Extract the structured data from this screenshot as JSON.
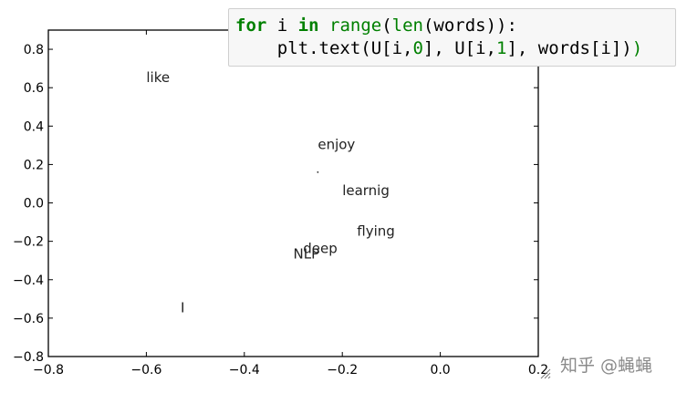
{
  "chart_data": {
    "type": "scatter",
    "xlim": [
      -0.8,
      0.2
    ],
    "ylim": [
      -0.8,
      0.9
    ],
    "x_ticks": [
      "−0.8",
      "−0.6",
      "−0.4",
      "−0.2",
      "0.0",
      "0.2"
    ],
    "y_ticks": [
      "−0.8",
      "−0.6",
      "−0.4",
      "−0.2",
      "0.0",
      "0.2",
      "0.4",
      "0.6",
      "0.8"
    ],
    "x_tick_values": [
      -0.8,
      -0.6,
      -0.4,
      -0.2,
      0.0,
      0.2
    ],
    "y_tick_values": [
      -0.8,
      -0.6,
      -0.4,
      -0.2,
      0.0,
      0.2,
      0.4,
      0.6,
      0.8
    ],
    "points": [
      {
        "label": "like",
        "x": -0.6,
        "y": 0.63
      },
      {
        "label": "enjoy",
        "x": -0.25,
        "y": 0.28
      },
      {
        "label": "learnig",
        "x": -0.2,
        "y": 0.04
      },
      {
        "label": "flying",
        "x": -0.17,
        "y": -0.17
      },
      {
        "label": "deep",
        "x": -0.28,
        "y": -0.26
      },
      {
        "label": "NLP",
        "x": -0.3,
        "y": -0.29
      },
      {
        "label": "I",
        "x": -0.53,
        "y": -0.57
      }
    ],
    "marker_point": {
      "x": -0.25,
      "y": 0.16
    },
    "grid": false,
    "title": "",
    "xlabel": "",
    "ylabel": ""
  },
  "code": {
    "line1": {
      "kw_for": "for",
      "var_i": " i ",
      "kw_in": "in",
      "sp": " ",
      "fn_range": "range",
      "p1": "(",
      "fn_len": "len",
      "rest": "(words)):"
    },
    "line2": {
      "indent": "    plt.text(U[i,",
      "n0": "0",
      "mid": "], U[i,",
      "n1": "1",
      "end": "], words[i])"
    }
  },
  "watermark": "知乎 @蝇蝇"
}
